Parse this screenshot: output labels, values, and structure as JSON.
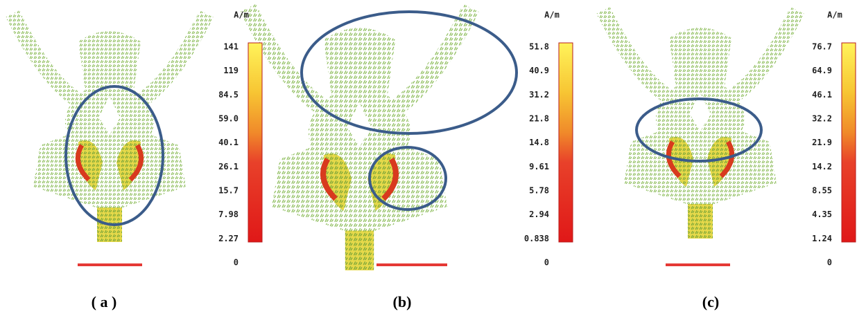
{
  "panels": [
    {
      "unit": "A/m",
      "scale_labels": [
        "141",
        "119",
        "84.5",
        "59.0",
        "40.1",
        "26.1",
        "15.7",
        "7.98",
        "2.27",
        "0"
      ],
      "caption": "( a )"
    },
    {
      "unit": "A/m",
      "scale_labels": [
        "51.8",
        "40.9",
        "31.2",
        "21.8",
        "14.8",
        "9.61",
        "5.78",
        "2.94",
        "0.838",
        "0"
      ],
      "caption": "(b)"
    },
    {
      "unit": "A/m",
      "scale_labels": [
        "76.7",
        "64.9",
        "46.1",
        "32.2",
        "21.9",
        "14.2",
        "8.55",
        "4.35",
        "1.24",
        "0"
      ],
      "caption": "(c)"
    }
  ]
}
